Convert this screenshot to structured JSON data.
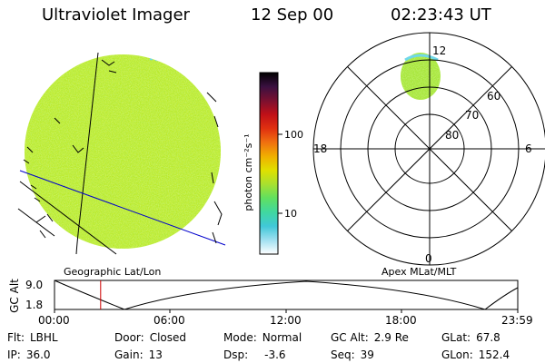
{
  "header": {
    "instrument": "Ultraviolet Imager",
    "date": "12 Sep 00",
    "time": "02:23:43 UT"
  },
  "image_panel": {
    "caption": "Geographic Lat/Lon"
  },
  "colorbar": {
    "unit_label": "photon cm⁻²s⁻¹",
    "ticks": [
      "100",
      "10"
    ],
    "colors": [
      "#000000",
      "#3a1040",
      "#7a1030",
      "#c01018",
      "#e03010",
      "#f07010",
      "#f0b000",
      "#e0e000",
      "#a8e030",
      "#60e060",
      "#40d8a0",
      "#40c8d8",
      "#a0e0f0",
      "#ffffff"
    ]
  },
  "polar_plot": {
    "caption": "Apex MLat/MLT",
    "mlt_labels": {
      "top": "12",
      "left": "18",
      "right": "6",
      "bottom": "0"
    },
    "lat_labels": [
      "60",
      "70",
      "80"
    ]
  },
  "timeline": {
    "ylabel": "GC Alt",
    "yticks": [
      "9.0",
      "1.8"
    ],
    "xticks": [
      "00:00",
      "06:00",
      "12:00",
      "18:00",
      "23:59"
    ],
    "current_time_fraction": 0.0997
  },
  "status": {
    "filter_label": "Flt:",
    "filter_value": "LBHL",
    "ip_label": "IP:",
    "ip_value": "36.0",
    "door_label": "Door:",
    "door_value": "Closed",
    "gain_label": "Gain:",
    "gain_value": "13",
    "mode_label": "Mode:",
    "mode_value": "Normal",
    "dsp_label": "Dsp:",
    "dsp_value": "-3.6",
    "gcalt_label": "GC Alt:",
    "gcalt_value": "2.9 Re",
    "seq_label": "Seq:",
    "seq_value": "39",
    "glat_label": "GLat:",
    "glat_value": "67.8",
    "glon_label": "GLon:",
    "glon_value": "152.4"
  }
}
